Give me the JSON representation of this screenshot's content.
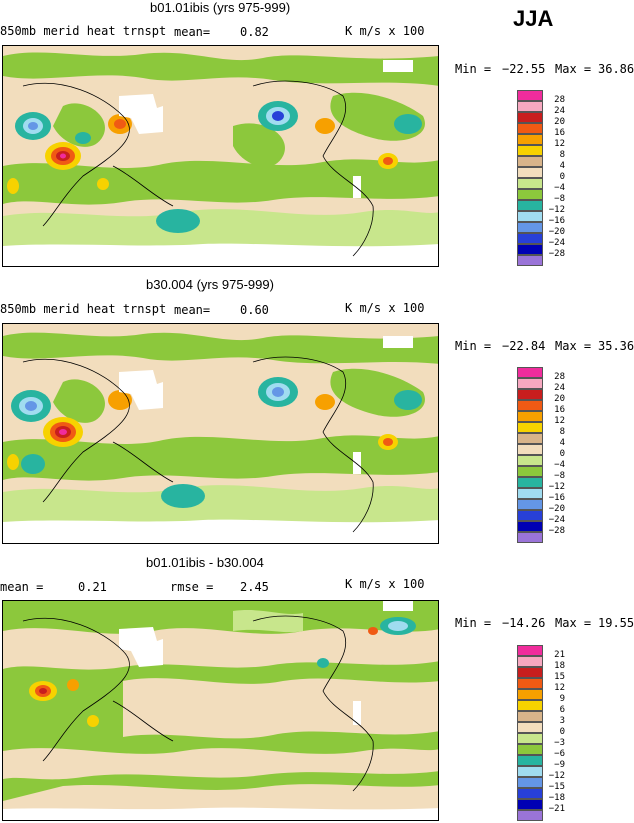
{
  "season": "JJA",
  "panels": [
    {
      "title": "b01.01ibis (yrs 975-999)",
      "field": "850mb merid heat trnspt",
      "mean_label": "mean=",
      "mean": "0.82",
      "units": "K m/s x 100",
      "min_label": "Min =",
      "min": "−22.55",
      "max_label": "Max =",
      "max": "36.86",
      "levels": [
        "28",
        "24",
        "20",
        "16",
        "12",
        "8",
        "4",
        "0",
        "−4",
        "−8",
        "−12",
        "−16",
        "−20",
        "−24",
        "−28"
      ]
    },
    {
      "title": "b30.004 (yrs 975-999)",
      "field": "850mb merid heat trnspt",
      "mean_label": "mean=",
      "mean": "0.60",
      "units": "K m/s x 100",
      "min_label": "Min =",
      "min": "−22.84",
      "max_label": "Max =",
      "max": "35.36",
      "levels": [
        "28",
        "24",
        "20",
        "16",
        "12",
        "8",
        "4",
        "0",
        "−4",
        "−8",
        "−12",
        "−16",
        "−20",
        "−24",
        "−28"
      ]
    },
    {
      "title": "b01.01ibis - b30.004",
      "mean_label": "mean =",
      "mean": "0.21",
      "rmse_label": "rmse =",
      "rmse": "2.45",
      "units": "K m/s x 100",
      "min_label": "Min =",
      "min": "−14.26",
      "max_label": "Max =",
      "max": "19.55",
      "levels": [
        "21",
        "18",
        "15",
        "12",
        "9",
        "6",
        "3",
        "0",
        "−3",
        "−6",
        "−9",
        "−12",
        "−15",
        "−18",
        "−21"
      ]
    }
  ],
  "legend_colors": [
    "#f02c9c",
    "#f7a8c0",
    "#c81e1e",
    "#f05a14",
    "#f7a000",
    "#f7d200",
    "#d8b48a",
    "#f2ddbd",
    "#c8e68c",
    "#8cc83c",
    "#28b4a0",
    "#a0dcf0",
    "#6496e6",
    "#2840d8",
    "#0000b4",
    "#9a74d8"
  ]
}
